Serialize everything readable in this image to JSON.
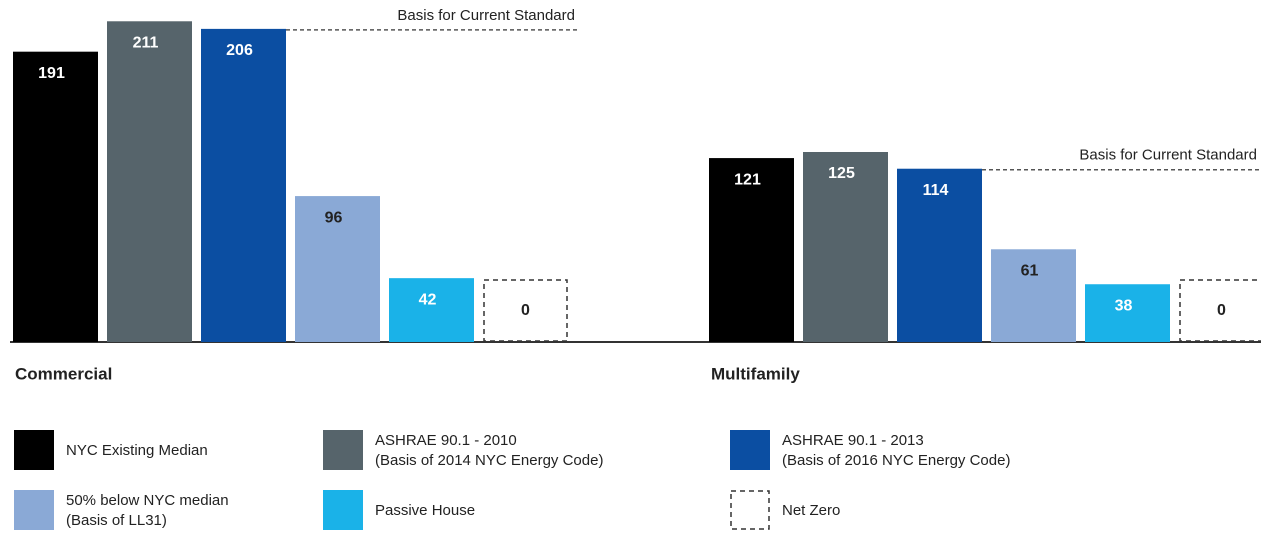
{
  "chart_data": {
    "type": "bar",
    "categories": [
      "Commercial",
      "Multifamily"
    ],
    "series": [
      {
        "name": "NYC Existing Median",
        "color": "#000000",
        "values": [
          191,
          121
        ]
      },
      {
        "name": "ASHRAE 90.1 - 2010",
        "legend_note": "(Basis of 2014 NYC Energy Code)",
        "color": "#56646b",
        "values": [
          211,
          125
        ]
      },
      {
        "name": "ASHRAE 90.1 - 2013",
        "legend_note": "(Basis of 2016 NYC Energy Code)",
        "color": "#0b4ea2",
        "values": [
          206,
          114
        ]
      },
      {
        "name": "50% below NYC median",
        "legend_note": "(Basis of LL31)",
        "color": "#8aa9d6",
        "values": [
          96,
          61
        ]
      },
      {
        "name": "Passive House",
        "color": "#1ab2e8",
        "values": [
          42,
          38
        ]
      },
      {
        "name": "Net Zero",
        "color": "#ffffff",
        "dashed": true,
        "values": [
          0,
          0
        ]
      }
    ],
    "annotations": [
      {
        "text": "Basis for Current Standard",
        "series": 2,
        "category": 0
      },
      {
        "text": "Basis for Current Standard",
        "series": 2,
        "category": 1
      }
    ]
  }
}
